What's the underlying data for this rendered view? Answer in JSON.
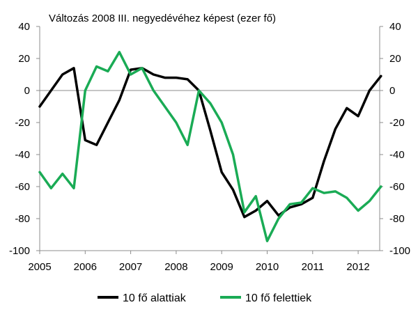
{
  "chart_data": {
    "type": "line",
    "title": "Változás 2008 III.  negyedévéhez képest (ezer fő)",
    "xlabel": "",
    "ylabel": "",
    "x_ticks": [
      "2005",
      "2006",
      "2007",
      "2008",
      "2009",
      "2010",
      "2011",
      "2012"
    ],
    "ylim": [
      -100,
      40
    ],
    "y_ticks": [
      40,
      20,
      0,
      -20,
      -40,
      -60,
      -80,
      -100
    ],
    "y_ticks_right": [
      40,
      20,
      0,
      -20,
      -40,
      -60,
      -80,
      -100
    ],
    "grid": false,
    "legend_position": "bottom",
    "x": [
      "2005 Q1",
      "2005 Q2",
      "2005 Q3",
      "2005 Q4",
      "2006 Q1",
      "2006 Q2",
      "2006 Q3",
      "2006 Q4",
      "2007 Q1",
      "2007 Q2",
      "2007 Q3",
      "2007 Q4",
      "2008 Q1",
      "2008 Q2",
      "2008 Q3",
      "2008 Q4",
      "2009 Q1",
      "2009 Q2",
      "2009 Q3",
      "2009 Q4",
      "2010 Q1",
      "2010 Q2",
      "2010 Q3",
      "2010 Q4",
      "2011 Q1",
      "2011 Q2",
      "2011 Q3",
      "2011 Q4",
      "2012 Q1",
      "2012 Q2",
      "2012 Q3"
    ],
    "series": [
      {
        "name": "10 fő alattiak",
        "color": "#000000",
        "values": [
          -10,
          0,
          10,
          14,
          -31,
          -34,
          -20,
          -6,
          13,
          14,
          10,
          8,
          8,
          7,
          0,
          -25,
          -51,
          -62,
          -79,
          -75,
          -69,
          -78,
          -73,
          -71,
          -67,
          -44,
          -24,
          -11,
          -16,
          0,
          9
        ]
      },
      {
        "name": "10 fő felettiek",
        "color": "#1aab55",
        "values": [
          -51,
          -61,
          -52,
          -61,
          0,
          15,
          12,
          24,
          10,
          14,
          0,
          -10,
          -20,
          -34,
          0,
          -8,
          -20,
          -40,
          -76,
          -66,
          -94,
          -80,
          -71,
          -70,
          -61,
          -64,
          -63,
          -67,
          -75,
          -69,
          -60
        ]
      }
    ]
  }
}
